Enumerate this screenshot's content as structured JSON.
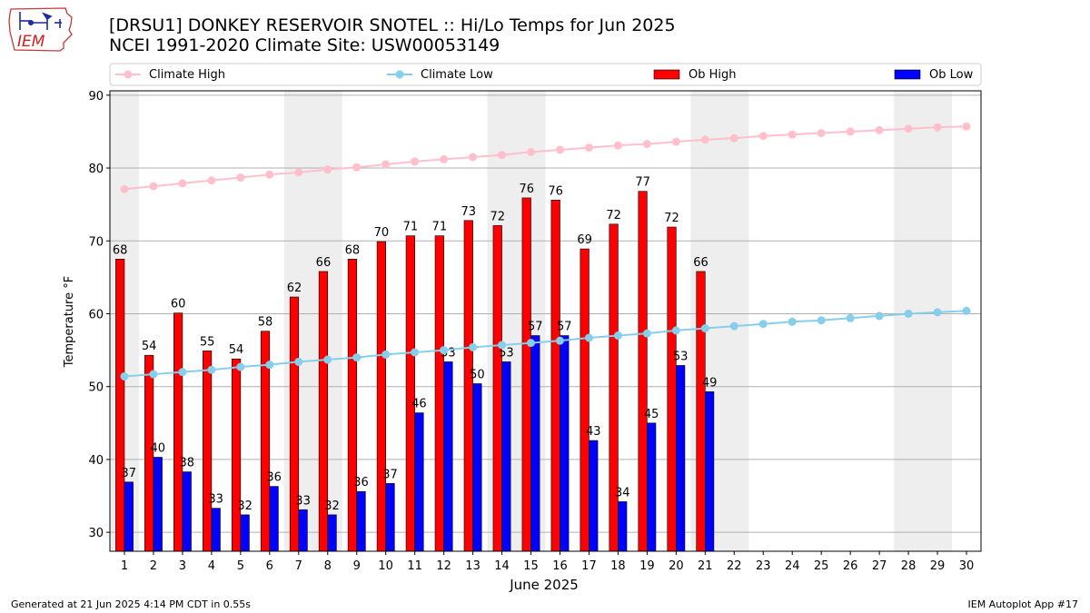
{
  "header": {
    "title_line1": "[DRSU1] DONKEY RESERVOIR SNOTEL :: Hi/Lo Temps for Jun 2025",
    "title_line2": "NCEI 1991-2020 Climate Site: USW00053149",
    "logo_text": "IEM"
  },
  "footer": {
    "generated": "Generated at 21 Jun 2025 4:14 PM CDT in 0.55s",
    "app": "IEM Autoplot App #17"
  },
  "colors": {
    "ob_high": "#ff0000",
    "ob_low": "#0000ff",
    "climate_high": "#ffc0cb",
    "climate_low": "#87ceeb",
    "weekend_band": "#eeeeee",
    "grid": "#b0b0b0"
  },
  "chart_data": {
    "type": "bar",
    "title": "[DRSU1] DONKEY RESERVOIR SNOTEL :: Hi/Lo Temps for Jun 2025",
    "xlabel": "June 2025",
    "ylabel": "Temperature °F",
    "ylim": [
      27.4,
      90.6
    ],
    "yticks": [
      30,
      40,
      50,
      60,
      70,
      80,
      90
    ],
    "grid": "horizontal",
    "legend_position": "top",
    "legend": [
      "Climate High",
      "Climate Low",
      "Ob High",
      "Ob Low"
    ],
    "weekend_bands": [
      [
        1,
        1
      ],
      [
        7,
        8
      ],
      [
        14,
        15
      ],
      [
        21,
        22
      ],
      [
        28,
        29
      ]
    ],
    "days": [
      1,
      2,
      3,
      4,
      5,
      6,
      7,
      8,
      9,
      10,
      11,
      12,
      13,
      14,
      15,
      16,
      17,
      18,
      19,
      20,
      21,
      22,
      23,
      24,
      25,
      26,
      27,
      28,
      29,
      30
    ],
    "ob_high": [
      67.5,
      54.3,
      60.1,
      54.9,
      53.8,
      57.6,
      62.3,
      65.8,
      67.5,
      69.9,
      70.7,
      70.7,
      72.8,
      72.1,
      75.9,
      75.6,
      68.9,
      72.3,
      76.8,
      71.9,
      65.8
    ],
    "ob_high_labels": [
      "68",
      "54",
      "60",
      "55",
      "54",
      "58",
      "62",
      "66",
      "68",
      "70",
      "71",
      "71",
      "73",
      "72",
      "76",
      "76",
      "69",
      "72",
      "77",
      "72",
      "66"
    ],
    "ob_low": [
      36.9,
      40.3,
      38.3,
      33.3,
      32.4,
      36.3,
      33.1,
      32.4,
      35.6,
      36.7,
      46.4,
      53.4,
      50.4,
      53.4,
      57.0,
      57.0,
      42.6,
      34.2,
      45.0,
      52.9,
      49.3
    ],
    "ob_low_labels": [
      "37",
      "40",
      "38",
      "33",
      "32",
      "36",
      "33",
      "32",
      "36",
      "37",
      "46",
      "53",
      "50",
      "53",
      "57",
      "57",
      "43",
      "34",
      "45",
      "53",
      "49"
    ],
    "climate_high": [
      77.1,
      77.5,
      77.9,
      78.3,
      78.7,
      79.1,
      79.4,
      79.8,
      80.1,
      80.5,
      80.9,
      81.2,
      81.5,
      81.8,
      82.2,
      82.5,
      82.8,
      83.1,
      83.3,
      83.6,
      83.9,
      84.1,
      84.4,
      84.6,
      84.8,
      85.0,
      85.2,
      85.4,
      85.6,
      85.7
    ],
    "climate_low": [
      51.4,
      51.7,
      52.0,
      52.3,
      52.7,
      53.0,
      53.4,
      53.7,
      54.0,
      54.4,
      54.7,
      55.0,
      55.4,
      55.7,
      56.0,
      56.3,
      56.7,
      57.0,
      57.3,
      57.7,
      58.0,
      58.3,
      58.6,
      58.9,
      59.1,
      59.4,
      59.7,
      60.0,
      60.2,
      60.4
    ]
  }
}
